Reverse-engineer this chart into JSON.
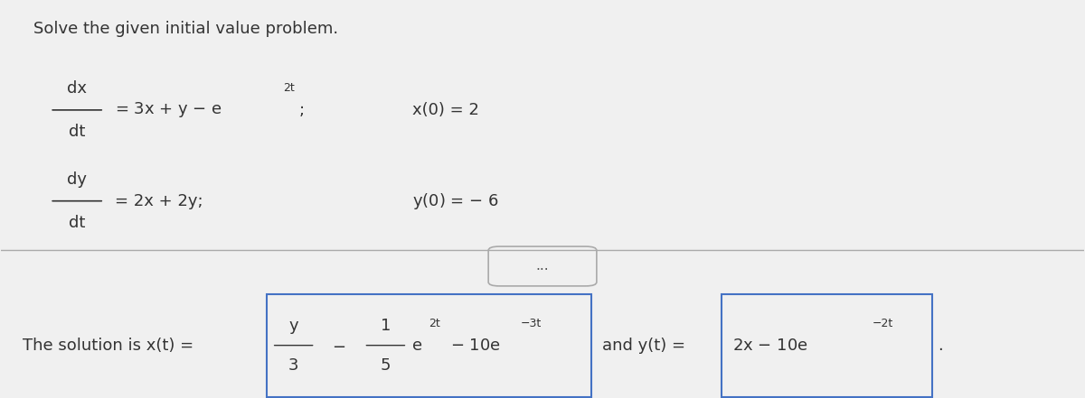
{
  "bg_color": "#f0f0f0",
  "top_text": "Solve the given initial value problem.",
  "eq1_lhs_num": "dx",
  "eq1_lhs_den": "dt",
  "eq1_rhs": "= 3x + y − e",
  "eq1_rhs_sup": "2t",
  "eq1_rhs_semi": ";",
  "eq1_ic": "x(0) = 2",
  "eq2_lhs_num": "dy",
  "eq2_lhs_den": "dt",
  "eq2_rhs": "= 2x + 2y;",
  "eq2_ic": "y(0) = − 6",
  "dots": "•••",
  "solution_prefix": "The solution is x(t) = ",
  "sol_box1_line1_frac_num": "y",
  "sol_box1_line1_frac_den": "3",
  "sol_box1_line1_minus1": "−",
  "sol_box1_line1_frac2_num": "1",
  "sol_box1_line1_frac2_den": "5",
  "sol_box1_line1_e": "e",
  "sol_box1_line1_exp": "2t",
  "sol_box1_line1_minus2": "− 10e",
  "sol_box1_line1_exp2": "−3t",
  "sol_and": "and y(t) = ",
  "sol_box2_content": "2x − 10e",
  "sol_box2_exp": "−2t",
  "sol_period": "."
}
